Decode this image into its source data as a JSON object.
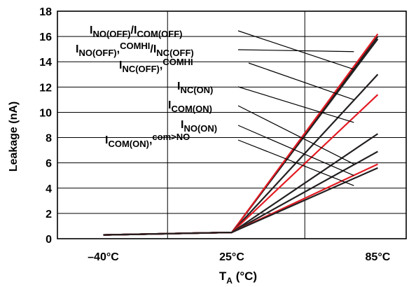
{
  "chart_data": {
    "type": "line",
    "title": "",
    "xlabel": "T",
    "xlabel_sub": "A",
    "xlabel_unit": " (°C)",
    "ylabel": "Leakage (nA)",
    "categories": [
      "–40°C",
      "25°C",
      "85°C"
    ],
    "ylim": [
      0,
      18
    ],
    "yticks": [
      "0",
      "2",
      "4",
      "6",
      "8",
      "10",
      "12",
      "14",
      "16",
      "18"
    ],
    "grid": true,
    "colors": {
      "dark": "#231f20",
      "red": "#e31b23"
    },
    "series": [
      {
        "color": "dark",
        "values": [
          0.3,
          0.5,
          16.0
        ]
      },
      {
        "color": "dark",
        "values": [
          0.3,
          0.5,
          15.8
        ]
      },
      {
        "color": "red",
        "values": [
          0.3,
          0.5,
          16.2
        ]
      },
      {
        "color": "dark",
        "values": [
          0.3,
          0.5,
          13.0
        ]
      },
      {
        "color": "red",
        "values": [
          0.3,
          0.5,
          11.4
        ]
      },
      {
        "color": "dark",
        "values": [
          0.3,
          0.5,
          8.3
        ]
      },
      {
        "color": "dark",
        "values": [
          0.3,
          0.5,
          6.9
        ]
      },
      {
        "color": "red",
        "values": [
          0.3,
          0.5,
          5.9
        ]
      },
      {
        "color": "dark",
        "values": [
          0.3,
          0.5,
          5.6
        ]
      }
    ],
    "annotations": [
      {
        "parts": [
          [
            "I",
            ""
          ],
          [
            "NO(OFF)",
            "sub"
          ],
          [
            "/I",
            ""
          ],
          [
            "COM(OFF)",
            "sub"
          ]
        ],
        "value": 13.4
      },
      {
        "parts": [
          [
            "I",
            ""
          ],
          [
            "NO(OFF)",
            "sub"
          ],
          [
            ",",
            ""
          ],
          [
            "COMHI",
            "sup"
          ],
          [
            "/I",
            ""
          ],
          [
            "NC(OFF)",
            "sub"
          ]
        ],
        "value": 14.8
      },
      {
        "parts": [
          [
            "I",
            ""
          ],
          [
            "NC(OFF)",
            "sub"
          ],
          [
            ",",
            ""
          ],
          [
            "COMHI",
            "sup"
          ]
        ],
        "value": 11.0
      },
      {
        "parts": [
          [
            "I",
            ""
          ],
          [
            "NC(ON)",
            "sub"
          ]
        ],
        "value": 9.2
      },
      {
        "parts": [
          [
            "I",
            ""
          ],
          [
            "COM(ON)",
            "sub"
          ]
        ],
        "value": 5.9
      },
      {
        "parts": [
          [
            "I",
            ""
          ],
          [
            "NO(ON)",
            "sub"
          ]
        ],
        "value": 5.0
      },
      {
        "parts": [
          [
            "I",
            ""
          ],
          [
            "COM(ON)",
            "sub"
          ],
          [
            ",",
            ""
          ],
          [
            "com>NO",
            "sup"
          ]
        ],
        "value": 4.2
      }
    ]
  }
}
